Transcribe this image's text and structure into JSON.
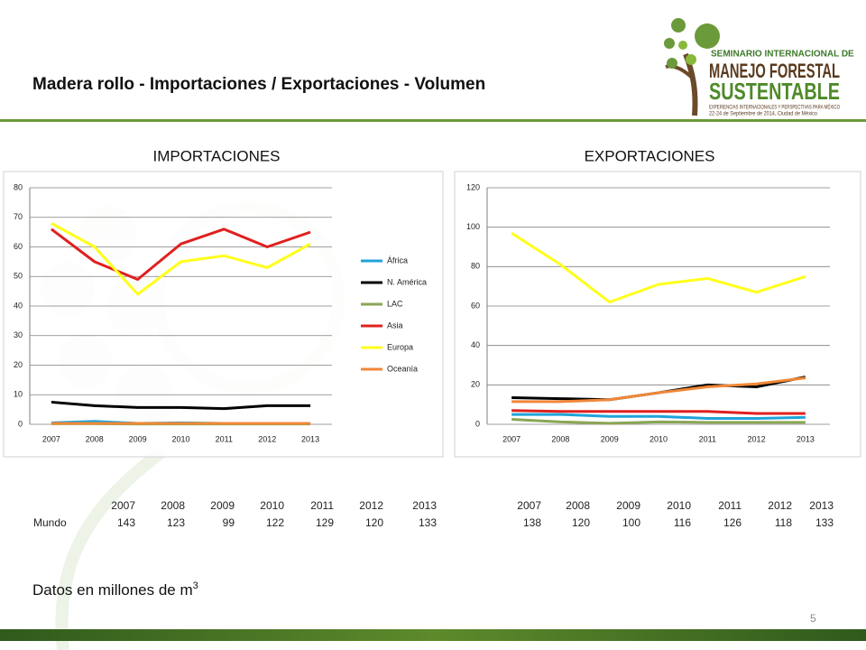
{
  "slide_title": "Madera rollo -  Importaciones / Exportaciones - Volumen",
  "logo": {
    "line1": "SEMINARIO INTERNACIONAL DE",
    "line2": "MANEJO FORESTAL",
    "line3": "SUSTENTABLE",
    "line4": "EXPERIENCIAS INTERNACIONALES Y PERSPECTIVAS PARA MÉXICO",
    "line5": "22-24 de Septiembre de 2014, Ciudad de México"
  },
  "chart_data": [
    {
      "type": "line",
      "title": "IMPORTACIONES",
      "categories": [
        "2007",
        "2008",
        "2009",
        "2010",
        "2011",
        "2012",
        "2013"
      ],
      "ylim": [
        0,
        80
      ],
      "yticks": [
        0,
        10,
        20,
        30,
        40,
        50,
        60,
        70,
        80
      ],
      "grid": true,
      "legend": "right",
      "series": [
        {
          "name": "África",
          "color": "#1fa3d8",
          "values": [
            0.5,
            1,
            0.3,
            0.5,
            0.3,
            0.2,
            0.2
          ]
        },
        {
          "name": "N. América",
          "color": "#000000",
          "values": [
            7.5,
            6.3,
            5.7,
            5.7,
            5.3,
            6.3,
            6.3
          ]
        },
        {
          "name": "LAC",
          "color": "#8aa655",
          "values": [
            0.2,
            0.2,
            0.1,
            0.1,
            0.1,
            0.1,
            0.1
          ]
        },
        {
          "name": "Asia",
          "color": "#e0201f",
          "values": [
            66,
            55,
            49,
            61,
            66,
            60,
            65
          ]
        },
        {
          "name": "Europa",
          "color": "#ffff1a",
          "values": [
            68,
            60,
            44,
            55,
            57,
            53,
            61
          ]
        },
        {
          "name": "Oceanía",
          "color": "#f08838",
          "values": [
            0.3,
            0.3,
            0.3,
            0.3,
            0.3,
            0.3,
            0.3
          ]
        }
      ]
    },
    {
      "type": "line",
      "title": "EXPORTACIONES",
      "categories": [
        "2007",
        "2008",
        "2009",
        "2010",
        "2011",
        "2012",
        "2013"
      ],
      "ylim": [
        0,
        120
      ],
      "yticks": [
        0,
        20,
        40,
        60,
        80,
        100,
        120
      ],
      "grid": true,
      "series": [
        {
          "color": "#1fa3d8",
          "values": [
            5,
            5,
            4,
            4,
            3,
            3,
            3.5
          ]
        },
        {
          "color": "#000000",
          "values": [
            13.5,
            13,
            12.5,
            16,
            20,
            19,
            24
          ]
        },
        {
          "color": "#8aa655",
          "values": [
            2.5,
            1.2,
            0.5,
            1.2,
            1,
            1,
            1
          ]
        },
        {
          "color": "#e0201f",
          "values": [
            7,
            6.5,
            6.5,
            6.5,
            6.5,
            5.5,
            5.5
          ]
        },
        {
          "color": "#ffff1a",
          "values": [
            97,
            81,
            62,
            71,
            74,
            67,
            75
          ]
        },
        {
          "color": "#f08838",
          "values": [
            11.5,
            11.5,
            12.5,
            16,
            19,
            20.5,
            23.5
          ]
        }
      ]
    }
  ],
  "tables": [
    {
      "header": [
        "2007",
        "2008",
        "2009",
        "2010",
        "2011",
        "2012",
        "2013"
      ],
      "row_label": "Mundo",
      "values": [
        "143",
        "123",
        "99",
        "122",
        "129",
        "120",
        "133"
      ]
    },
    {
      "header": [
        "2007",
        "2008",
        "2009",
        "2010",
        "2011",
        "2012",
        "2013"
      ],
      "values": [
        "138",
        "120",
        "100",
        "116",
        "126",
        "118",
        "133"
      ]
    }
  ],
  "footnote": {
    "text": "Datos en millones de m",
    "superscript": "3"
  },
  "page_number": "5"
}
